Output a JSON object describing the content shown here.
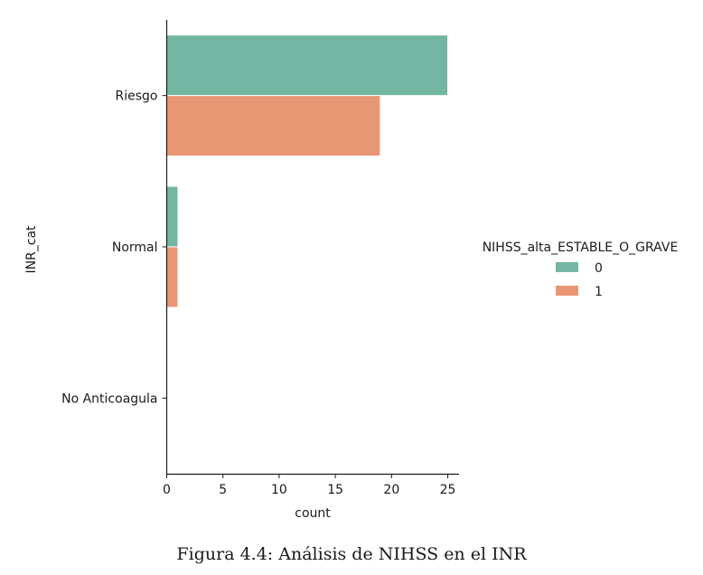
{
  "chart_data": {
    "type": "bar",
    "orientation": "horizontal",
    "categories": [
      "Riesgo",
      "Normal",
      "No Anticoagula"
    ],
    "series": [
      {
        "name": "0",
        "values": [
          25,
          1,
          0
        ],
        "color": "#72b6a1"
      },
      {
        "name": "1",
        "values": [
          19,
          1,
          0
        ],
        "color": "#e99675"
      }
    ],
    "xlabel": "count",
    "ylabel": "INR_cat",
    "xlim": [
      0,
      26
    ],
    "xticks": [
      0,
      5,
      10,
      15,
      20,
      25
    ],
    "legend_title": "NIHSS_alta_ESTABLE_O_GRAVE",
    "legend_placement": "right",
    "grid": false
  },
  "caption": "Figura 4.4: Análisis de NIHSS en el INR"
}
